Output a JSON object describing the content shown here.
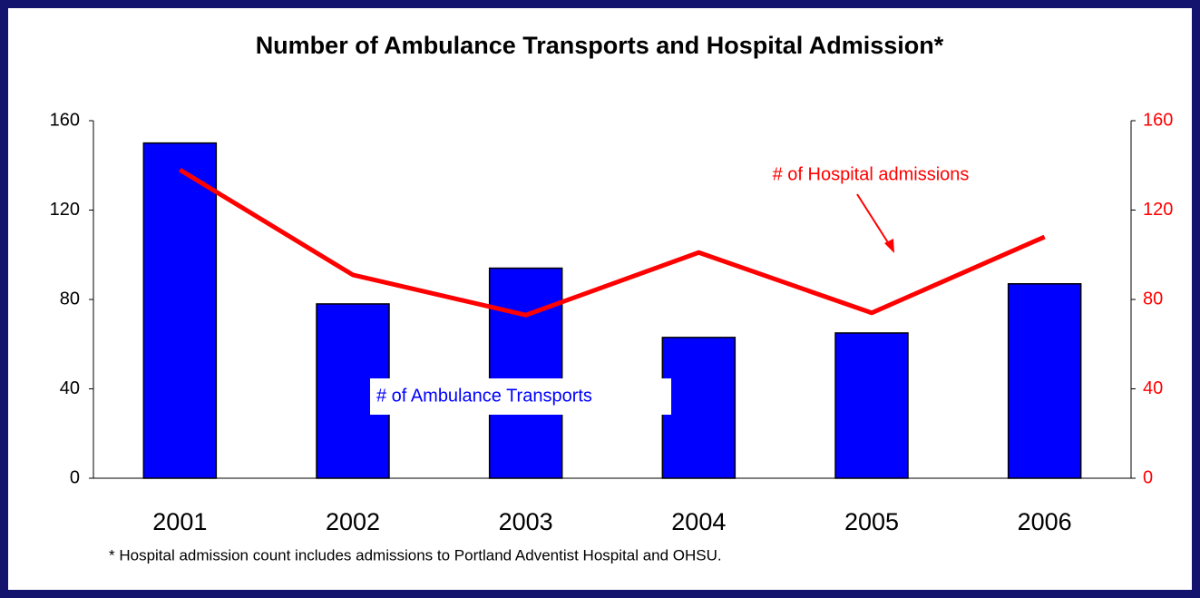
{
  "chart_data": {
    "type": "bar_line",
    "title": "Number of Ambulance Transports and Hospital Admission*",
    "footnote": "* Hospital admission count includes admissions to Portland Adventist Hospital and OHSU.",
    "categories": [
      "2001",
      "2002",
      "2003",
      "2004",
      "2005",
      "2006"
    ],
    "series": [
      {
        "name": "# of Ambulance Transports",
        "color": "#0000ff",
        "type": "bar",
        "values": [
          150,
          78,
          94,
          63,
          65,
          87
        ]
      },
      {
        "name": "# of Hospital admissions",
        "color": "#ff0000",
        "type": "line",
        "axis": "y2",
        "values": [
          138,
          91,
          73,
          101,
          74,
          108
        ]
      }
    ],
    "ylim": [
      0,
      160
    ],
    "yticks": [
      0,
      40,
      80,
      120,
      160
    ],
    "y2lim": [
      0,
      160
    ],
    "y2ticks": [
      0,
      40,
      80,
      120,
      160
    ],
    "y2color": "#ff0000"
  }
}
